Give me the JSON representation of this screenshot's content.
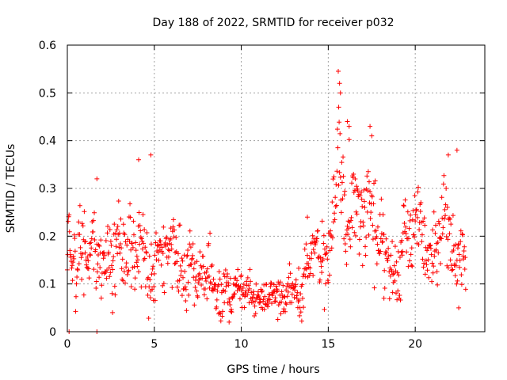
{
  "chart_data": {
    "type": "scatter",
    "title": "Day 188 of 2022, SRMTID for receiver p032",
    "xlabel": "GPS time / hours",
    "ylabel": "SRMTID / TECUs",
    "xlim": [
      0,
      24
    ],
    "ylim": [
      0,
      0.6
    ],
    "xticks": [
      0,
      5,
      10,
      15,
      20
    ],
    "yticks": [
      0,
      0.1,
      0.2,
      0.3,
      0.4,
      0.5,
      0.6
    ],
    "xtick_labels": [
      "0",
      "5",
      "10",
      "15",
      "20"
    ],
    "ytick_labels": [
      "0",
      "0.1",
      "0.2",
      "0.3",
      "0.4",
      "0.5",
      "0.6"
    ],
    "grid": true,
    "marker": "+",
    "color": "#ff0000",
    "series": [
      {
        "name": "SRMTID",
        "x_start": 0.0,
        "x_step": 0.025,
        "profile": [
          {
            "x": 0.0,
            "y": 0.16,
            "spread": 0.05
          },
          {
            "x": 1.0,
            "y": 0.15,
            "spread": 0.06
          },
          {
            "x": 2.0,
            "y": 0.18,
            "spread": 0.06
          },
          {
            "x": 3.0,
            "y": 0.17,
            "spread": 0.07
          },
          {
            "x": 4.0,
            "y": 0.21,
            "spread": 0.07
          },
          {
            "x": 5.0,
            "y": 0.18,
            "spread": 0.06
          },
          {
            "x": 6.0,
            "y": 0.15,
            "spread": 0.05
          },
          {
            "x": 7.0,
            "y": 0.14,
            "spread": 0.05
          },
          {
            "x": 8.0,
            "y": 0.11,
            "spread": 0.04
          },
          {
            "x": 9.0,
            "y": 0.09,
            "spread": 0.04
          },
          {
            "x": 10.0,
            "y": 0.08,
            "spread": 0.03
          },
          {
            "x": 11.0,
            "y": 0.08,
            "spread": 0.025
          },
          {
            "x": 12.0,
            "y": 0.075,
            "spread": 0.025
          },
          {
            "x": 13.0,
            "y": 0.09,
            "spread": 0.03
          },
          {
            "x": 14.0,
            "y": 0.12,
            "spread": 0.04
          },
          {
            "x": 15.0,
            "y": 0.17,
            "spread": 0.05
          },
          {
            "x": 15.6,
            "y": 0.33,
            "spread": 0.1
          },
          {
            "x": 16.3,
            "y": 0.25,
            "spread": 0.08
          },
          {
            "x": 17.0,
            "y": 0.22,
            "spread": 0.07
          },
          {
            "x": 17.6,
            "y": 0.25,
            "spread": 0.08
          },
          {
            "x": 18.3,
            "y": 0.14,
            "spread": 0.04
          },
          {
            "x": 19.0,
            "y": 0.15,
            "spread": 0.05
          },
          {
            "x": 20.0,
            "y": 0.2,
            "spread": 0.05
          },
          {
            "x": 21.0,
            "y": 0.18,
            "spread": 0.05
          },
          {
            "x": 21.7,
            "y": 0.24,
            "spread": 0.07
          },
          {
            "x": 22.3,
            "y": 0.14,
            "spread": 0.05
          },
          {
            "x": 22.9,
            "y": 0.12,
            "spread": 0.03
          }
        ],
        "spikes": [
          {
            "x": 15.65,
            "y": 0.52
          },
          {
            "x": 15.7,
            "y": 0.5
          },
          {
            "x": 15.6,
            "y": 0.47
          },
          {
            "x": 16.1,
            "y": 0.44
          },
          {
            "x": 16.2,
            "y": 0.43
          },
          {
            "x": 17.4,
            "y": 0.43
          },
          {
            "x": 17.5,
            "y": 0.41
          },
          {
            "x": 4.8,
            "y": 0.37
          },
          {
            "x": 4.1,
            "y": 0.36
          },
          {
            "x": 22.4,
            "y": 0.38
          },
          {
            "x": 21.9,
            "y": 0.37
          },
          {
            "x": 1.7,
            "y": 0.32
          },
          {
            "x": 13.8,
            "y": 0.24
          },
          {
            "x": 0.1,
            "y": 0.0
          },
          {
            "x": 1.7,
            "y": 0.0
          },
          {
            "x": 2.6,
            "y": 0.04
          },
          {
            "x": 9.3,
            "y": 0.02
          },
          {
            "x": 18.2,
            "y": 0.07
          },
          {
            "x": 22.5,
            "y": 0.05
          }
        ]
      }
    ]
  }
}
